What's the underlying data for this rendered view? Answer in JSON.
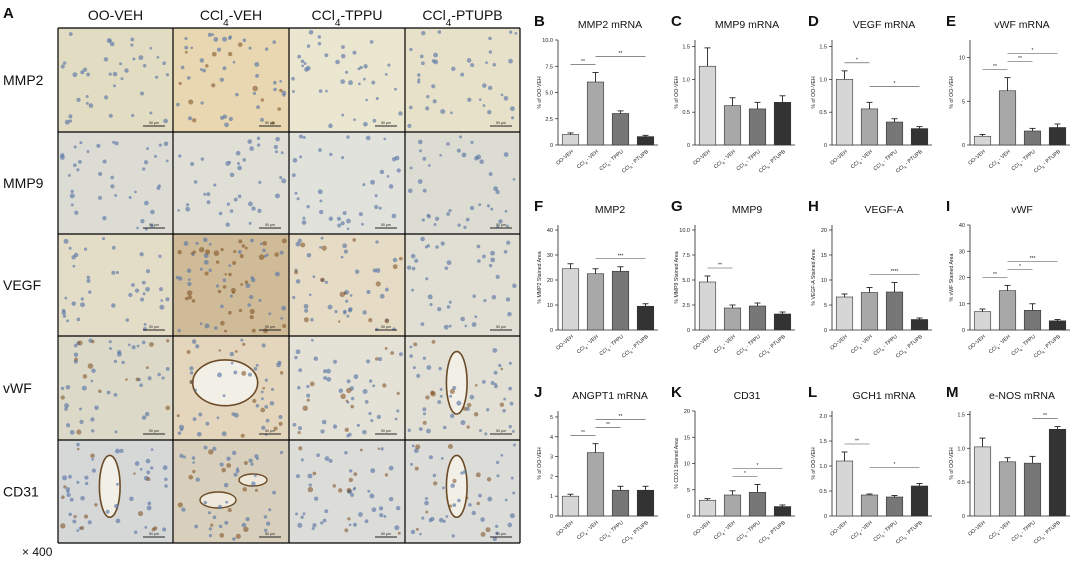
{
  "panel_a": {
    "letter": "A",
    "columns": [
      "OO-VEH",
      "CCl4-VEH",
      "CCl4-TPPU",
      "CCl4-PTUPB"
    ],
    "rows": [
      "MMP2",
      "MMP9",
      "VEGF",
      "vWF",
      "CD31"
    ],
    "magnification": "× 400",
    "scale_bar_label": "50 μm"
  },
  "groups": [
    "OO-VEH",
    "CCl4 - VEH",
    "CCl4 - TPPU",
    "CCl4 - PTUPB"
  ],
  "bar_colors": [
    "#d6d6d6",
    "#a8a8a8",
    "#777777",
    "#333333"
  ],
  "chart_data": [
    {
      "id": "B",
      "type": "bar",
      "title": "MMP2 mRNA",
      "ylabel": "% of OO-VEH",
      "ylim": [
        0,
        10
      ],
      "yticks": [
        0,
        2.5,
        5.0,
        7.5,
        10.0
      ],
      "tick_decimals": 1,
      "values": [
        1.0,
        6.0,
        3.0,
        0.8
      ],
      "errors": [
        0.15,
        0.9,
        0.25,
        0.12
      ],
      "sig": [
        {
          "from": 0,
          "to": 1,
          "label": "**"
        },
        {
          "from": 1,
          "to": 3,
          "label": "**"
        }
      ]
    },
    {
      "id": "C",
      "type": "bar",
      "title": "MMP9 mRNA",
      "ylabel": "% of OO-VEH",
      "ylim": [
        0,
        1.6
      ],
      "yticks": [
        0,
        0.5,
        1.0,
        1.5
      ],
      "tick_decimals": 1,
      "values": [
        1.2,
        0.6,
        0.55,
        0.65
      ],
      "errors": [
        0.28,
        0.12,
        0.1,
        0.1
      ],
      "sig": []
    },
    {
      "id": "D",
      "type": "bar",
      "title": "VEGF mRNA",
      "ylabel": "% of OO-VEH",
      "ylim": [
        0,
        1.6
      ],
      "yticks": [
        0,
        0.5,
        1.0,
        1.5
      ],
      "tick_decimals": 1,
      "values": [
        1.0,
        0.55,
        0.35,
        0.25
      ],
      "errors": [
        0.13,
        0.1,
        0.05,
        0.03
      ],
      "sig": [
        {
          "from": 0,
          "to": 1,
          "label": "*"
        },
        {
          "from": 1,
          "to": 3,
          "label": "*"
        }
      ]
    },
    {
      "id": "E",
      "type": "bar",
      "title": "vWF mRNA",
      "ylabel": "% of OO-VEH",
      "ylim": [
        0,
        12
      ],
      "yticks": [
        0,
        5,
        10
      ],
      "tick_decimals": 0,
      "values": [
        1.0,
        6.2,
        1.6,
        2.0
      ],
      "errors": [
        0.2,
        1.5,
        0.3,
        0.4
      ],
      "sig": [
        {
          "from": 0,
          "to": 1,
          "label": "**"
        },
        {
          "from": 1,
          "to": 2,
          "label": "**"
        },
        {
          "from": 1,
          "to": 3,
          "label": "*"
        }
      ]
    },
    {
      "id": "F",
      "type": "bar",
      "title": "MMP2",
      "ylabel": "% MMP2 Stained Area",
      "ylim": [
        0,
        42
      ],
      "yticks": [
        0,
        10,
        20,
        30,
        40
      ],
      "tick_decimals": 0,
      "values": [
        24.5,
        22.5,
        23.5,
        9.5
      ],
      "errors": [
        2.0,
        2.0,
        1.8,
        1.0
      ],
      "sig": [
        {
          "from": 1,
          "to": 3,
          "label": "***"
        }
      ]
    },
    {
      "id": "G",
      "type": "bar",
      "title": "MMP9",
      "ylabel": "% MMP9 Stained Area",
      "ylim": [
        0,
        10.5
      ],
      "yticks": [
        0,
        2.5,
        5.0,
        7.5,
        10.0
      ],
      "tick_decimals": 1,
      "values": [
        4.8,
        2.2,
        2.4,
        1.6
      ],
      "errors": [
        0.6,
        0.3,
        0.3,
        0.2
      ],
      "sig": [
        {
          "from": 0,
          "to": 1,
          "label": "**"
        }
      ]
    },
    {
      "id": "H",
      "type": "bar",
      "title": "VEGF-A",
      "ylabel": "% VEGF-A Stained Area",
      "ylim": [
        0,
        21
      ],
      "yticks": [
        0,
        5,
        10,
        15,
        20
      ],
      "tick_decimals": 0,
      "values": [
        6.6,
        7.5,
        7.6,
        2.1
      ],
      "errors": [
        0.6,
        1.0,
        1.9,
        0.3
      ],
      "sig": [
        {
          "from": 1,
          "to": 3,
          "label": "****"
        }
      ]
    },
    {
      "id": "I",
      "type": "bar",
      "title": "vWF",
      "ylabel": "% vWF Stained Area",
      "ylim": [
        0,
        40
      ],
      "yticks": [
        0,
        10,
        20,
        30,
        40
      ],
      "tick_decimals": 0,
      "values": [
        7.0,
        15.0,
        7.5,
        3.5
      ],
      "errors": [
        1.0,
        2.0,
        2.5,
        0.5
      ],
      "sig": [
        {
          "from": 0,
          "to": 1,
          "label": "**"
        },
        {
          "from": 1,
          "to": 2,
          "label": "*"
        },
        {
          "from": 1,
          "to": 3,
          "label": "***"
        }
      ]
    },
    {
      "id": "J",
      "type": "bar",
      "title": "ANGPT1 mRNA",
      "ylabel": "% of OO-VEH",
      "ylim": [
        0,
        5.3
      ],
      "yticks": [
        0,
        1,
        2,
        3,
        4,
        5
      ],
      "tick_decimals": 0,
      "values": [
        1.0,
        3.2,
        1.3,
        1.3
      ],
      "errors": [
        0.1,
        0.45,
        0.2,
        0.2
      ],
      "sig": [
        {
          "from": 0,
          "to": 1,
          "label": "**"
        },
        {
          "from": 1,
          "to": 2,
          "label": "**"
        },
        {
          "from": 1,
          "to": 3,
          "label": "**"
        }
      ]
    },
    {
      "id": "K",
      "type": "bar",
      "title": "CD31",
      "ylabel": "% CD31 Stained Area",
      "ylim": [
        0,
        20
      ],
      "yticks": [
        0,
        5,
        10,
        15,
        20
      ],
      "tick_decimals": 0,
      "values": [
        3.0,
        4.0,
        4.5,
        1.8
      ],
      "errors": [
        0.3,
        0.8,
        1.5,
        0.3
      ],
      "sig": [
        {
          "from": 1,
          "to": 2,
          "label": "*"
        },
        {
          "from": 1,
          "to": 3,
          "label": "*"
        }
      ]
    },
    {
      "id": "L",
      "type": "bar",
      "title": "GCH1 mRNA",
      "ylabel": "% of OO-VEH",
      "ylim": [
        0,
        2.1
      ],
      "yticks": [
        0,
        0.5,
        1.0,
        1.5,
        2.0
      ],
      "tick_decimals": 1,
      "values": [
        1.1,
        0.42,
        0.38,
        0.6
      ],
      "errors": [
        0.18,
        0.02,
        0.03,
        0.05
      ],
      "sig": [
        {
          "from": 0,
          "to": 1,
          "label": "**"
        },
        {
          "from": 1,
          "to": 3,
          "label": "*"
        }
      ]
    },
    {
      "id": "M",
      "type": "bar",
      "title": "e-NOS mRNA",
      "ylabel": "% of OO-VEH",
      "ylim": [
        0,
        1.55
      ],
      "yticks": [
        0,
        0.5,
        1.0,
        1.5
      ],
      "tick_decimals": 1,
      "values": [
        1.02,
        0.8,
        0.78,
        1.28
      ],
      "errors": [
        0.13,
        0.06,
        0.1,
        0.04
      ],
      "sig": [
        {
          "from": 2,
          "to": 3,
          "label": "**"
        }
      ]
    }
  ]
}
